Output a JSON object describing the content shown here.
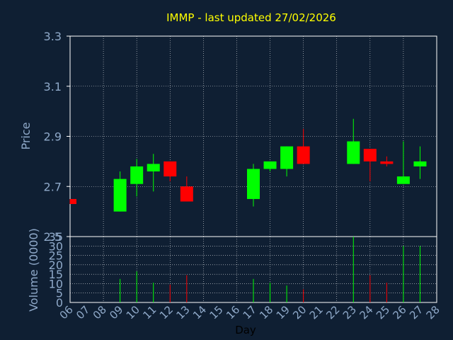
{
  "chart_data": {
    "type": "candlestick",
    "title": "IMMP - last updated 27/02/2026",
    "xlabel": "Day",
    "price_panel": {
      "ylabel": "Price",
      "ylim": [
        2.5,
        3.3
      ],
      "ytick_labels": [
        "3.3",
        "3.1",
        "2.9",
        "2.7",
        "2.5"
      ],
      "yticks": [
        3.3,
        3.1,
        2.9,
        2.7,
        2.5
      ],
      "grid": true
    },
    "volume_panel": {
      "ylabel": "Volume (0000)",
      "ylim": [
        0,
        35
      ],
      "ytick_labels": [
        "35",
        "30",
        "25",
        "20",
        "15",
        "10",
        "5",
        "0"
      ],
      "yticks": [
        35,
        30,
        25,
        20,
        15,
        10,
        5,
        0
      ],
      "grid": true
    },
    "x_tick_labels": [
      "06",
      "07",
      "08",
      "09",
      "10",
      "11",
      "12",
      "13",
      "14",
      "15",
      "16",
      "17",
      "18",
      "19",
      "20",
      "21",
      "22",
      "23",
      "24",
      "25",
      "26",
      "27",
      "28"
    ],
    "candles": [
      {
        "day": "06",
        "open": 2.65,
        "close": 2.63,
        "high": 2.65,
        "low": 2.63,
        "volume": 0
      },
      {
        "day": "09",
        "open": 2.6,
        "close": 2.73,
        "high": 2.76,
        "low": 2.6,
        "volume": 12.5
      },
      {
        "day": "10",
        "open": 2.71,
        "close": 2.78,
        "high": 2.81,
        "low": 2.66,
        "volume": 16.5
      },
      {
        "day": "11",
        "open": 2.76,
        "close": 2.79,
        "high": 2.83,
        "low": 2.68,
        "volume": 10.5
      },
      {
        "day": "12",
        "open": 2.8,
        "close": 2.74,
        "high": 2.8,
        "low": 2.72,
        "volume": 9.5
      },
      {
        "day": "13",
        "open": 2.7,
        "close": 2.64,
        "high": 2.74,
        "low": 2.64,
        "volume": 14.5
      },
      {
        "day": "17",
        "open": 2.65,
        "close": 2.77,
        "high": 2.79,
        "low": 2.62,
        "volume": 12.5
      },
      {
        "day": "18",
        "open": 2.77,
        "close": 2.8,
        "high": 2.8,
        "low": 2.76,
        "volume": 10.5
      },
      {
        "day": "19",
        "open": 2.77,
        "close": 2.86,
        "high": 2.86,
        "low": 2.74,
        "volume": 9.0
      },
      {
        "day": "20",
        "open": 2.86,
        "close": 2.79,
        "high": 2.93,
        "low": 2.79,
        "volume": 7.0
      },
      {
        "day": "23",
        "open": 2.79,
        "close": 2.88,
        "high": 2.97,
        "low": 2.79,
        "volume": 35.0
      },
      {
        "day": "24",
        "open": 2.85,
        "close": 2.8,
        "high": 2.85,
        "low": 2.72,
        "volume": 14.5
      },
      {
        "day": "25",
        "open": 2.8,
        "close": 2.79,
        "high": 2.82,
        "low": 2.78,
        "volume": 10.5
      },
      {
        "day": "26",
        "open": 2.71,
        "close": 2.74,
        "high": 2.88,
        "low": 2.71,
        "volume": 30.0
      },
      {
        "day": "27",
        "open": 2.78,
        "close": 2.8,
        "high": 2.86,
        "low": 2.73,
        "volume": 30.0
      }
    ],
    "colors": {
      "background": "#0f1f33",
      "up": "#00ff00",
      "down": "#ff0000",
      "title": "#ffff00",
      "axis_label": "#8fa9c9",
      "tick_label": "#8fa9c9",
      "grid": "#ffffff",
      "frame": "#ffffff",
      "xlabel": "#000000"
    }
  }
}
